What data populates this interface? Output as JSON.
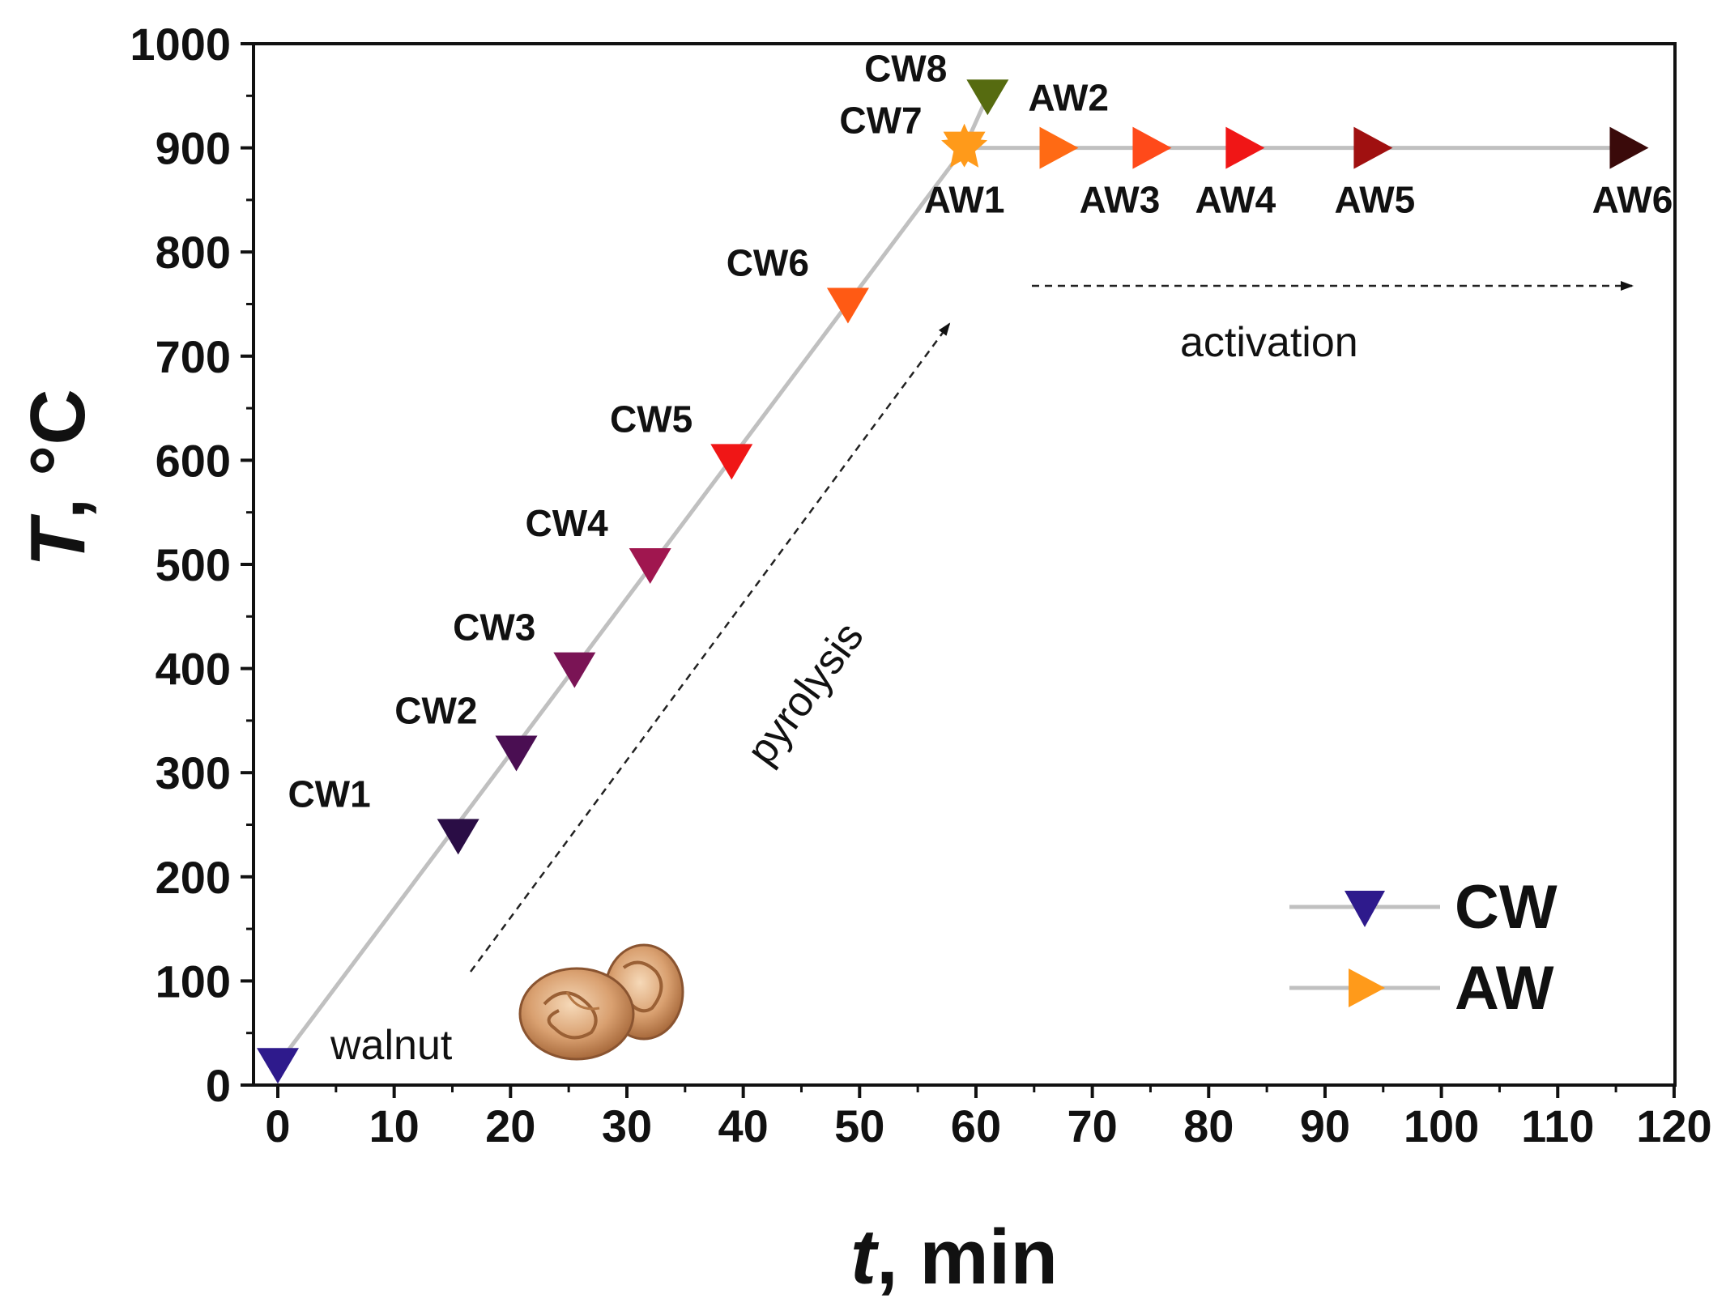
{
  "chart_data": {
    "type": "line",
    "title": "",
    "xlabel_var": "t",
    "xlabel_unit": ", min",
    "ylabel_var": "T",
    "ylabel_unit": ", °C",
    "xlim": [
      -2,
      120
    ],
    "ylim": [
      0,
      1000
    ],
    "xticks": [
      0,
      10,
      20,
      30,
      40,
      50,
      60,
      70,
      80,
      90,
      100,
      110,
      120
    ],
    "yticks": [
      0,
      100,
      200,
      300,
      400,
      500,
      600,
      700,
      800,
      900,
      1000
    ],
    "grid": false,
    "legend_position": "bottom-right",
    "profile_line": {
      "color": "#c0c0c0",
      "points": [
        [
          0,
          20
        ],
        [
          59,
          900
        ],
        [
          116,
          900
        ]
      ]
    },
    "series": [
      {
        "name": "CW",
        "marker": "triangle-down",
        "legend_color": "#2e1a8c",
        "points": [
          {
            "label": "",
            "x": 0,
            "y": 20,
            "color": "#2e1a8c"
          },
          {
            "label": "CW1",
            "x": 15.5,
            "y": 240,
            "color": "#2a0d45"
          },
          {
            "label": "CW2",
            "x": 20.5,
            "y": 320,
            "color": "#4a0e52"
          },
          {
            "label": "CW3",
            "x": 25.5,
            "y": 400,
            "color": "#7a1455"
          },
          {
            "label": "CW4",
            "x": 32,
            "y": 500,
            "color": "#a0164f"
          },
          {
            "label": "CW5",
            "x": 39,
            "y": 600,
            "color": "#f01616"
          },
          {
            "label": "CW6",
            "x": 49,
            "y": 750,
            "color": "#ff5a14"
          },
          {
            "label": "CW7",
            "x": 59,
            "y": 900,
            "color": "#ff9a1a"
          },
          {
            "label": "CW8",
            "x": 61,
            "y": 950,
            "color": "#566b10"
          }
        ]
      },
      {
        "name": "AW",
        "marker": "triangle-right",
        "legend_color": "#ff9a1a",
        "points": [
          {
            "label": "AW1",
            "x": 59,
            "y": 900,
            "color": "#ff9a1a"
          },
          {
            "label": "AW2",
            "x": 67,
            "y": 900,
            "color": "#ff6a14"
          },
          {
            "label": "AW3",
            "x": 75,
            "y": 900,
            "color": "#ff4a1a"
          },
          {
            "label": "AW4",
            "x": 83,
            "y": 900,
            "color": "#f01616"
          },
          {
            "label": "AW5",
            "x": 94,
            "y": 900,
            "color": "#a01010"
          },
          {
            "label": "AW6",
            "x": 116,
            "y": 900,
            "color": "#3a0a0a"
          }
        ]
      }
    ],
    "annotations": {
      "pyrolysis": "pyrolysis",
      "activation": "activation",
      "walnut": "walnut"
    }
  }
}
